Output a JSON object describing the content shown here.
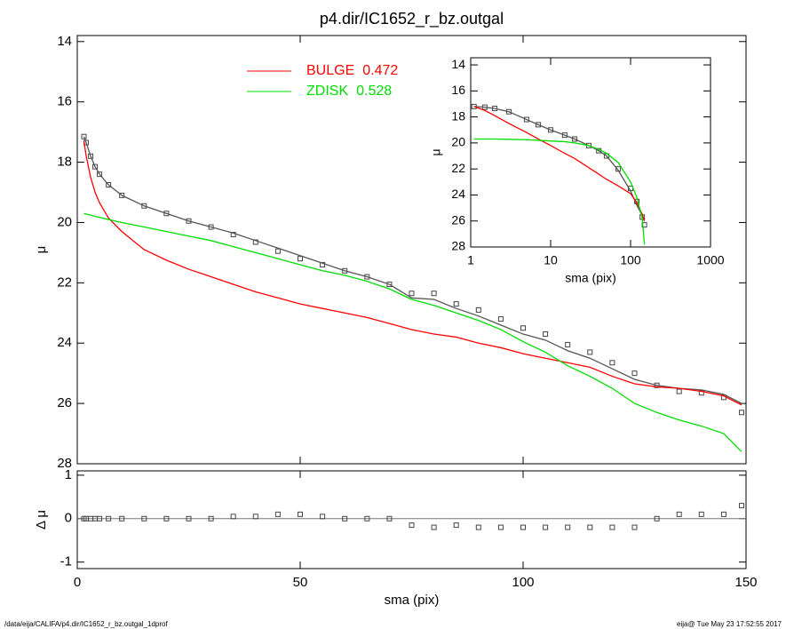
{
  "chart_data": [
    {
      "type": "line",
      "title": "p4.dir/IC1652_r_bz.outgal",
      "ylabel": "μ",
      "xlim": [
        0,
        150
      ],
      "ylim": [
        28,
        13.8
      ],
      "yticks": [
        14,
        16,
        18,
        20,
        22,
        24,
        26,
        28
      ],
      "x": [
        1.5,
        2,
        3,
        4,
        5,
        7,
        10,
        15,
        20,
        25,
        30,
        35,
        40,
        45,
        50,
        55,
        60,
        65,
        70,
        75,
        80,
        85,
        90,
        95,
        100,
        105,
        110,
        115,
        120,
        125,
        130,
        135,
        140,
        145,
        149
      ],
      "series": [
        {
          "style": "squares",
          "color": "#444444",
          "values": [
            17.15,
            17.35,
            17.8,
            18.15,
            18.4,
            18.75,
            19.1,
            19.45,
            19.7,
            19.95,
            20.15,
            20.4,
            20.65,
            20.95,
            21.2,
            21.4,
            21.6,
            21.8,
            22.05,
            22.35,
            22.35,
            22.7,
            22.9,
            23.2,
            23.5,
            23.7,
            24.05,
            24.3,
            24.65,
            25.0,
            25.4,
            25.6,
            25.65,
            25.8,
            26.3
          ]
        },
        {
          "style": "line",
          "color": "#555555",
          "values": [
            17.15,
            17.35,
            17.8,
            18.15,
            18.4,
            18.75,
            19.1,
            19.45,
            19.7,
            19.95,
            20.15,
            20.35,
            20.6,
            20.85,
            21.1,
            21.35,
            21.6,
            21.8,
            22.05,
            22.5,
            22.55,
            22.85,
            23.1,
            23.4,
            23.7,
            23.9,
            24.25,
            24.5,
            24.85,
            25.2,
            25.4,
            25.5,
            25.55,
            25.7,
            26.0
          ]
        },
        {
          "name": "BULGE",
          "fraction": 0.472,
          "style": "line",
          "color": "#ff0000",
          "values": [
            17.3,
            17.8,
            18.5,
            19.0,
            19.35,
            19.85,
            20.3,
            20.9,
            21.25,
            21.55,
            21.8,
            22.05,
            22.3,
            22.5,
            22.7,
            22.85,
            23.0,
            23.15,
            23.35,
            23.55,
            23.7,
            23.8,
            24.0,
            24.15,
            24.35,
            24.5,
            24.65,
            24.8,
            25.1,
            25.35,
            25.45,
            25.5,
            25.6,
            25.75,
            26.05
          ]
        },
        {
          "name": "ZDISK",
          "fraction": 0.528,
          "style": "line",
          "color": "#00dd00",
          "values": [
            19.7,
            19.72,
            19.75,
            19.8,
            19.83,
            19.9,
            20.0,
            20.15,
            20.3,
            20.45,
            20.6,
            20.8,
            21.0,
            21.2,
            21.4,
            21.6,
            21.75,
            21.95,
            22.2,
            22.55,
            22.75,
            23.0,
            23.25,
            23.55,
            23.95,
            24.3,
            24.75,
            25.1,
            25.5,
            26.0,
            26.3,
            26.55,
            26.75,
            27.0,
            27.6
          ]
        }
      ]
    },
    {
      "type": "scatter",
      "ylabel": "Δ μ",
      "xlabel": "sma (pix)",
      "xlim": [
        0,
        150
      ],
      "xticks": [
        0,
        50,
        100,
        150
      ],
      "ylim": [
        -1.15,
        1.1
      ],
      "yticks": [
        -1,
        0,
        1
      ],
      "x": [
        1.5,
        2,
        3,
        4,
        5,
        7,
        10,
        15,
        20,
        25,
        30,
        35,
        40,
        45,
        50,
        55,
        60,
        65,
        70,
        75,
        80,
        85,
        90,
        95,
        100,
        105,
        110,
        115,
        120,
        125,
        130,
        135,
        140,
        145,
        149
      ],
      "series": [
        {
          "style": "squares",
          "color": "#444444",
          "values": [
            0,
            0,
            0,
            0,
            0,
            0,
            0,
            0,
            0,
            0,
            0,
            0.05,
            0.05,
            0.1,
            0.1,
            0.05,
            0,
            0,
            0,
            -0.15,
            -0.2,
            -0.15,
            -0.2,
            -0.2,
            -0.2,
            -0.2,
            -0.2,
            -0.2,
            -0.2,
            -0.2,
            0,
            0.1,
            0.1,
            0.1,
            0.3
          ]
        }
      ]
    },
    {
      "type": "line",
      "log_x": true,
      "ylabel": "μ",
      "xlabel": "sma (pix)",
      "xlim": [
        1,
        1000
      ],
      "xticks": [
        1,
        10,
        100,
        1000
      ],
      "ylim": [
        28,
        13.45
      ],
      "yticks": [
        14,
        16,
        18,
        20,
        22,
        24,
        26,
        28
      ],
      "x": [
        1.1,
        1.5,
        2,
        3,
        5,
        7,
        10,
        15,
        20,
        30,
        40,
        50,
        70,
        100,
        120,
        140,
        149
      ],
      "series": [
        {
          "style": "squares",
          "color": "#444444",
          "values": [
            17.2,
            17.25,
            17.35,
            17.6,
            18.2,
            18.6,
            19.0,
            19.4,
            19.7,
            20.2,
            20.6,
            21.0,
            22.0,
            23.5,
            24.5,
            25.7,
            26.3
          ]
        },
        {
          "style": "line",
          "color": "#555555",
          "values": [
            17.2,
            17.25,
            17.35,
            17.6,
            18.2,
            18.6,
            19.0,
            19.4,
            19.7,
            20.2,
            20.6,
            21.0,
            22.1,
            23.7,
            24.8,
            25.6,
            26.0
          ]
        },
        {
          "style": "line",
          "color": "#ff0000",
          "values": [
            17.2,
            17.5,
            17.9,
            18.5,
            19.2,
            19.7,
            20.2,
            20.8,
            21.2,
            21.9,
            22.4,
            22.8,
            23.3,
            23.9,
            24.6,
            25.5,
            26.0
          ]
        },
        {
          "style": "line",
          "color": "#00dd00",
          "values": [
            19.7,
            19.7,
            19.7,
            19.72,
            19.75,
            19.8,
            19.85,
            19.9,
            20.0,
            20.2,
            20.5,
            20.8,
            21.5,
            23.0,
            24.2,
            25.8,
            27.8
          ]
        }
      ]
    }
  ],
  "footer": {
    "left": "/data/eija/CALIFA/p4.dir/IC1652_r_bz.outgal_1dprof",
    "right": "eija@  Tue May 23 17:52:55 2017"
  }
}
